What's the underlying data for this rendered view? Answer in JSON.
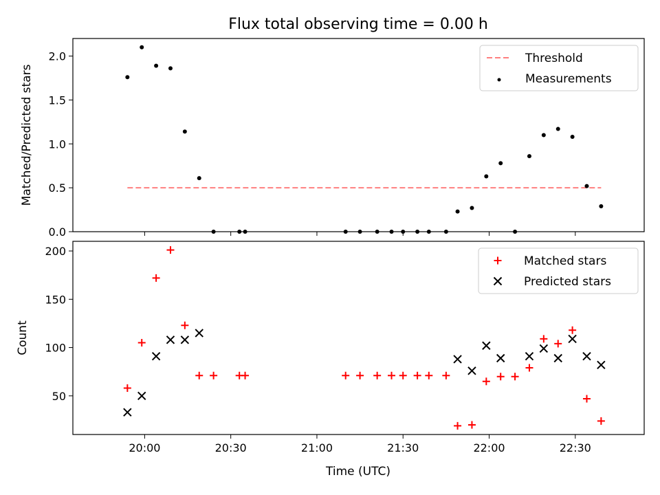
{
  "title": "Flux total observing time = 0.00 h",
  "xlabel": "Time (UTC)",
  "x_ticks": [
    "20:00",
    "20:30",
    "21:00",
    "21:30",
    "22:00",
    "22:30"
  ],
  "colors": {
    "threshold": "#ff7f7f",
    "measurements": "#000000",
    "matched": "#ff0000",
    "predicted": "#000000"
  },
  "chart_data": [
    {
      "type": "scatter",
      "ylabel": "Matched/Predicted stars",
      "ylim": [
        0,
        2.2
      ],
      "y_ticks": [
        0.0,
        0.5,
        1.0,
        1.5,
        2.0
      ],
      "y_tick_labels": [
        "0.0",
        "0.5",
        "1.0",
        "1.5",
        "2.0"
      ],
      "grid": false,
      "legend_position": "top-right",
      "threshold": {
        "name": "Threshold",
        "value": 0.5,
        "x_range": [
          "19:54",
          "22:39"
        ]
      },
      "series": [
        {
          "name": "Measurements",
          "marker": "dot",
          "points": [
            [
              "19:54",
              1.76
            ],
            [
              "19:59",
              2.1
            ],
            [
              "20:04",
              1.89
            ],
            [
              "20:09",
              1.86
            ],
            [
              "20:14",
              1.14
            ],
            [
              "20:19",
              0.61
            ],
            [
              "20:24",
              0.0
            ],
            [
              "20:33",
              0.0
            ],
            [
              "20:35",
              0.0
            ],
            [
              "21:10",
              0.0
            ],
            [
              "21:15",
              0.0
            ],
            [
              "21:21",
              0.0
            ],
            [
              "21:26",
              0.0
            ],
            [
              "21:30",
              0.0
            ],
            [
              "21:35",
              0.0
            ],
            [
              "21:39",
              0.0
            ],
            [
              "21:45",
              0.0
            ],
            [
              "21:49",
              0.23
            ],
            [
              "21:54",
              0.27
            ],
            [
              "21:59",
              0.63
            ],
            [
              "22:04",
              0.78
            ],
            [
              "22:09",
              0.0
            ],
            [
              "22:14",
              0.86
            ],
            [
              "22:19",
              1.1
            ],
            [
              "22:24",
              1.17
            ],
            [
              "22:29",
              1.08
            ],
            [
              "22:34",
              0.52
            ],
            [
              "22:39",
              0.29
            ]
          ]
        }
      ]
    },
    {
      "type": "scatter",
      "ylabel": "Count",
      "ylim": [
        10,
        210
      ],
      "y_ticks": [
        50,
        100,
        150,
        200
      ],
      "y_tick_labels": [
        "50",
        "100",
        "150",
        "200"
      ],
      "grid": false,
      "legend_position": "top-right",
      "series": [
        {
          "name": "Matched stars",
          "marker": "plus",
          "points": [
            [
              "19:54",
              58
            ],
            [
              "19:59",
              105
            ],
            [
              "20:04",
              172
            ],
            [
              "20:09",
              201
            ],
            [
              "20:14",
              123
            ],
            [
              "20:19",
              71
            ],
            [
              "20:24",
              71
            ],
            [
              "20:33",
              71
            ],
            [
              "20:35",
              71
            ],
            [
              "21:10",
              71
            ],
            [
              "21:15",
              71
            ],
            [
              "21:21",
              71
            ],
            [
              "21:26",
              71
            ],
            [
              "21:30",
              71
            ],
            [
              "21:35",
              71
            ],
            [
              "21:39",
              71
            ],
            [
              "21:45",
              71
            ],
            [
              "21:49",
              19
            ],
            [
              "21:54",
              20
            ],
            [
              "21:59",
              65
            ],
            [
              "22:04",
              70
            ],
            [
              "22:09",
              70
            ],
            [
              "22:14",
              79
            ],
            [
              "22:19",
              109
            ],
            [
              "22:24",
              104
            ],
            [
              "22:29",
              118
            ],
            [
              "22:34",
              47
            ],
            [
              "22:39",
              24
            ]
          ]
        },
        {
          "name": "Predicted stars",
          "marker": "x",
          "points": [
            [
              "19:54",
              33
            ],
            [
              "19:59",
              50
            ],
            [
              "20:04",
              91
            ],
            [
              "20:09",
              108
            ],
            [
              "20:14",
              108
            ],
            [
              "20:19",
              115
            ],
            [
              "21:49",
              88
            ],
            [
              "21:54",
              76
            ],
            [
              "21:59",
              102
            ],
            [
              "22:04",
              89
            ],
            [
              "22:14",
              91
            ],
            [
              "22:19",
              99
            ],
            [
              "22:24",
              89
            ],
            [
              "22:29",
              109
            ],
            [
              "22:34",
              91
            ],
            [
              "22:39",
              82
            ]
          ]
        }
      ]
    }
  ]
}
